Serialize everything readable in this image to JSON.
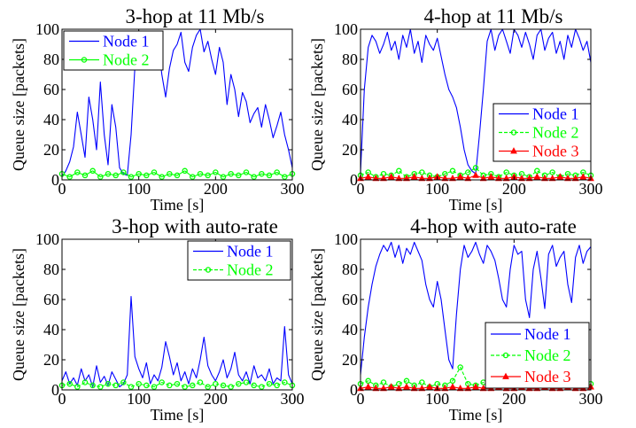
{
  "chart_data": [
    {
      "type": "line",
      "title": "3-hop at 11 Mb/s",
      "xlabel": "Time [s]",
      "ylabel": "Queue size [packets]",
      "xlim": [
        0,
        300
      ],
      "ylim": [
        0,
        100
      ],
      "xticks": [
        0,
        100,
        200,
        300
      ],
      "yticks": [
        0,
        20,
        40,
        60,
        80,
        100
      ],
      "grid": false,
      "legend_position": "top-left",
      "colors": {
        "Node 1": "#0000ff",
        "Node 2": "#00ff00",
        "Node 3": "#ff0000"
      },
      "series": [
        {
          "name": "Node 1",
          "style": "solid",
          "marker": "none",
          "x": [
            0,
            5,
            10,
            15,
            20,
            25,
            30,
            35,
            40,
            45,
            50,
            55,
            60,
            65,
            70,
            75,
            80,
            85,
            90,
            95,
            100,
            105,
            110,
            115,
            120,
            125,
            130,
            135,
            140,
            145,
            150,
            155,
            160,
            165,
            170,
            175,
            180,
            185,
            190,
            195,
            200,
            205,
            210,
            215,
            220,
            225,
            230,
            235,
            240,
            245,
            250,
            255,
            260,
            265,
            270,
            275,
            280,
            285,
            290,
            295,
            300
          ],
          "y": [
            2,
            6,
            12,
            22,
            45,
            30,
            15,
            55,
            40,
            20,
            65,
            30,
            10,
            50,
            35,
            8,
            4,
            3,
            30,
            75,
            92,
            84,
            96,
            88,
            80,
            92,
            70,
            55,
            74,
            86,
            90,
            98,
            78,
            72,
            88,
            96,
            100,
            85,
            92,
            80,
            70,
            88,
            78,
            50,
            70,
            60,
            42,
            58,
            52,
            38,
            44,
            48,
            35,
            50,
            40,
            28,
            36,
            45,
            30,
            20,
            8
          ]
        },
        {
          "name": "Node 2",
          "style": "solid",
          "marker": "circle",
          "x": [
            0,
            10,
            20,
            30,
            40,
            50,
            60,
            70,
            80,
            90,
            100,
            110,
            120,
            130,
            140,
            150,
            160,
            170,
            180,
            190,
            200,
            210,
            220,
            230,
            240,
            250,
            260,
            270,
            280,
            290,
            300
          ],
          "y": [
            4,
            2,
            5,
            3,
            6,
            2,
            4,
            3,
            5,
            2,
            4,
            3,
            5,
            2,
            4,
            3,
            6,
            2,
            4,
            3,
            5,
            2,
            4,
            3,
            5,
            2,
            4,
            3,
            5,
            2,
            4
          ]
        }
      ]
    },
    {
      "type": "line",
      "title": "4-hop at 11 Mb/s",
      "xlabel": "Time [s]",
      "ylabel": "Queue size [packets]",
      "xlim": [
        0,
        300
      ],
      "ylim": [
        0,
        100
      ],
      "xticks": [
        0,
        100,
        200,
        300
      ],
      "yticks": [
        0,
        20,
        40,
        60,
        80,
        100
      ],
      "grid": false,
      "legend_position": "bottom-right",
      "colors": {
        "Node 1": "#0000ff",
        "Node 2": "#00ff00",
        "Node 3": "#ff0000"
      },
      "series": [
        {
          "name": "Node 1",
          "style": "solid",
          "marker": "none",
          "x": [
            0,
            5,
            10,
            15,
            20,
            25,
            30,
            35,
            40,
            45,
            50,
            55,
            60,
            65,
            70,
            75,
            80,
            85,
            90,
            95,
            100,
            105,
            110,
            115,
            120,
            125,
            130,
            135,
            140,
            145,
            150,
            155,
            160,
            165,
            170,
            175,
            180,
            185,
            190,
            195,
            200,
            205,
            210,
            215,
            220,
            225,
            230,
            235,
            240,
            245,
            250,
            255,
            260,
            265,
            270,
            275,
            280,
            285,
            290,
            295,
            300
          ],
          "y": [
            5,
            60,
            88,
            96,
            92,
            84,
            90,
            98,
            86,
            92,
            80,
            96,
            88,
            100,
            84,
            92,
            78,
            96,
            90,
            86,
            94,
            82,
            70,
            60,
            55,
            48,
            35,
            20,
            10,
            6,
            4,
            30,
            60,
            92,
            100,
            86,
            96,
            100,
            92,
            84,
            100,
            96,
            88,
            98,
            90,
            80,
            96,
            100,
            86,
            94,
            98,
            84,
            92,
            80,
            96,
            88,
            100,
            94,
            86,
            92,
            78
          ]
        },
        {
          "name": "Node 2",
          "style": "dashed",
          "marker": "circle",
          "x": [
            0,
            10,
            20,
            30,
            40,
            50,
            60,
            70,
            80,
            90,
            100,
            110,
            120,
            130,
            140,
            150,
            160,
            170,
            180,
            190,
            200,
            210,
            220,
            230,
            240,
            250,
            260,
            270,
            280,
            290,
            300
          ],
          "y": [
            3,
            5,
            2,
            4,
            3,
            6,
            2,
            4,
            5,
            3,
            2,
            4,
            6,
            3,
            5,
            8,
            3,
            4,
            2,
            5,
            3,
            4,
            2,
            6,
            3,
            5,
            2,
            4,
            3,
            5,
            3
          ]
        },
        {
          "name": "Node 3",
          "style": "solid",
          "marker": "triangle",
          "x": [
            0,
            10,
            20,
            30,
            40,
            50,
            60,
            70,
            80,
            90,
            100,
            110,
            120,
            130,
            140,
            150,
            160,
            170,
            180,
            190,
            200,
            210,
            220,
            230,
            240,
            250,
            260,
            270,
            280,
            290,
            300
          ],
          "y": [
            1,
            2,
            1,
            1,
            2,
            1,
            1,
            2,
            1,
            1,
            2,
            1,
            1,
            2,
            1,
            3,
            1,
            2,
            1,
            1,
            2,
            1,
            1,
            2,
            1,
            1,
            2,
            1,
            1,
            2,
            1
          ]
        }
      ]
    },
    {
      "type": "line",
      "title": "3-hop with auto-rate",
      "xlabel": "Time [s]",
      "ylabel": "Queue size [packets]",
      "xlim": [
        0,
        300
      ],
      "ylim": [
        0,
        100
      ],
      "xticks": [
        0,
        100,
        200,
        300
      ],
      "yticks": [
        0,
        20,
        40,
        60,
        80,
        100
      ],
      "grid": false,
      "legend_position": "top-right",
      "colors": {
        "Node 1": "#0000ff",
        "Node 2": "#00ff00",
        "Node 3": "#ff0000"
      },
      "series": [
        {
          "name": "Node 1",
          "style": "solid",
          "marker": "none",
          "x": [
            0,
            5,
            10,
            15,
            20,
            25,
            30,
            35,
            40,
            45,
            50,
            55,
            60,
            65,
            70,
            75,
            80,
            85,
            90,
            95,
            100,
            105,
            110,
            115,
            120,
            125,
            130,
            135,
            140,
            145,
            150,
            155,
            160,
            165,
            170,
            175,
            180,
            185,
            190,
            195,
            200,
            205,
            210,
            215,
            220,
            225,
            230,
            235,
            240,
            245,
            250,
            255,
            260,
            265,
            270,
            275,
            280,
            285,
            290,
            295,
            300
          ],
          "y": [
            6,
            12,
            4,
            8,
            3,
            14,
            6,
            10,
            2,
            16,
            5,
            9,
            3,
            12,
            7,
            2,
            4,
            10,
            62,
            22,
            14,
            8,
            18,
            4,
            10,
            6,
            15,
            32,
            22,
            10,
            18,
            6,
            12,
            4,
            14,
            8,
            20,
            35,
            16,
            10,
            6,
            12,
            20,
            8,
            14,
            25,
            10,
            6,
            12,
            4,
            16,
            8,
            10,
            6,
            14,
            4,
            8,
            6,
            42,
            10,
            4
          ]
        },
        {
          "name": "Node 2",
          "style": "dashed",
          "marker": "circle",
          "x": [
            0,
            10,
            20,
            30,
            40,
            50,
            60,
            70,
            80,
            90,
            100,
            110,
            120,
            130,
            140,
            150,
            160,
            170,
            180,
            190,
            200,
            210,
            220,
            230,
            240,
            250,
            260,
            270,
            280,
            290,
            300
          ],
          "y": [
            3,
            4,
            2,
            5,
            3,
            2,
            4,
            3,
            5,
            2,
            4,
            3,
            2,
            5,
            3,
            4,
            2,
            3,
            5,
            2,
            4,
            3,
            2,
            4,
            5,
            3,
            2,
            4,
            3,
            5,
            3
          ]
        }
      ]
    },
    {
      "type": "line",
      "title": "4-hop with auto-rate",
      "xlabel": "Time [s]",
      "ylabel": "Queue size [packets]",
      "xlim": [
        0,
        300
      ],
      "ylim": [
        0,
        100
      ],
      "xticks": [
        0,
        100,
        200,
        300
      ],
      "yticks": [
        0,
        20,
        40,
        60,
        80,
        100
      ],
      "grid": false,
      "legend_position": "bottom-right",
      "colors": {
        "Node 1": "#0000ff",
        "Node 2": "#00ff00",
        "Node 3": "#ff0000"
      },
      "series": [
        {
          "name": "Node 1",
          "style": "solid",
          "marker": "none",
          "x": [
            0,
            5,
            10,
            15,
            20,
            25,
            30,
            35,
            40,
            45,
            50,
            55,
            60,
            65,
            70,
            75,
            80,
            85,
            90,
            95,
            100,
            105,
            110,
            115,
            120,
            125,
            130,
            135,
            140,
            145,
            150,
            155,
            160,
            165,
            170,
            175,
            180,
            185,
            190,
            195,
            200,
            205,
            210,
            215,
            220,
            225,
            230,
            235,
            240,
            245,
            250,
            255,
            260,
            265,
            270,
            275,
            280,
            285,
            290,
            295,
            300
          ],
          "y": [
            10,
            35,
            55,
            70,
            82,
            90,
            96,
            92,
            98,
            88,
            96,
            84,
            94,
            90,
            98,
            92,
            86,
            70,
            60,
            55,
            72,
            60,
            40,
            20,
            14,
            50,
            80,
            96,
            88,
            92,
            98,
            90,
            84,
            96,
            92,
            86,
            74,
            60,
            55,
            80,
            96,
            90,
            92,
            60,
            48,
            80,
            92,
            74,
            54,
            90,
            96,
            82,
            88,
            92,
            70,
            58,
            88,
            96,
            84,
            92,
            95
          ]
        },
        {
          "name": "Node 2",
          "style": "dashed",
          "marker": "circle",
          "x": [
            0,
            10,
            20,
            30,
            40,
            50,
            60,
            70,
            80,
            90,
            100,
            110,
            120,
            130,
            140,
            150,
            160,
            170,
            180,
            190,
            200,
            210,
            220,
            230,
            240,
            250,
            260,
            270,
            280,
            290,
            300
          ],
          "y": [
            4,
            6,
            3,
            5,
            2,
            4,
            6,
            3,
            5,
            2,
            4,
            3,
            6,
            15,
            4,
            3,
            5,
            2,
            4,
            3,
            6,
            2,
            7,
            3,
            5,
            2,
            4,
            3,
            5,
            2,
            4
          ]
        },
        {
          "name": "Node 3",
          "style": "solid",
          "marker": "triangle",
          "x": [
            0,
            10,
            20,
            30,
            40,
            50,
            60,
            70,
            80,
            90,
            100,
            110,
            120,
            130,
            140,
            150,
            160,
            170,
            180,
            190,
            200,
            210,
            220,
            230,
            240,
            250,
            260,
            270,
            280,
            290,
            300
          ],
          "y": [
            1,
            2,
            1,
            1,
            2,
            1,
            2,
            1,
            1,
            2,
            1,
            1,
            2,
            1,
            1,
            2,
            1,
            1,
            2,
            1,
            1,
            2,
            1,
            1,
            2,
            1,
            1,
            2,
            1,
            1,
            2
          ]
        }
      ]
    }
  ]
}
